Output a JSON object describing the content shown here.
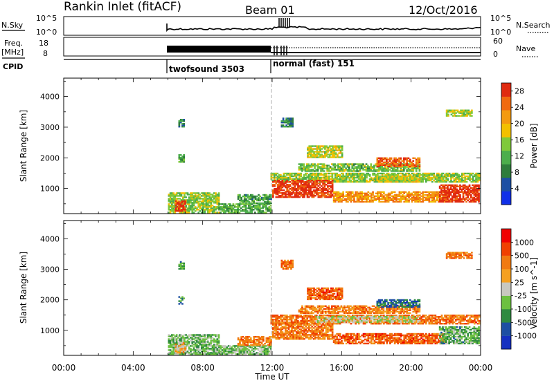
{
  "header": {
    "title": "Rankin Inlet (fitACF)",
    "beam": "Beam 01",
    "date": "12/Oct/2016"
  },
  "strip_labels": {
    "nsky": "N.Sky",
    "nsky_top_tick": "10^5",
    "nsky_bottom_tick": "10^0",
    "nsearch": "N.Search",
    "nsearch_top_tick": "10^5",
    "nsearch_bottom_tick": "10^0",
    "freq": "Freq.",
    "freq_unit": "[MHz]",
    "freq_top_tick": "18",
    "freq_bottom_tick": "8",
    "nave": "Nave",
    "nave_top_tick": "60",
    "nave_bottom_tick": "0",
    "cpid": "CPID",
    "cpid_mode_1": "twofsound 3503",
    "cpid_mode_2": "normal (fast) 151"
  },
  "colors": {
    "power": [
      "#1030e8",
      "#1d4fa3",
      "#2e7d3c",
      "#4cae4c",
      "#7fc93a",
      "#f2c000",
      "#f39a10",
      "#f06a10",
      "#e02a10"
    ],
    "velocity": [
      "#f00000",
      "#f04000",
      "#f07a10",
      "#f5a020",
      "#c8c8c0",
      "#6cc040",
      "#2e8a40",
      "#1d4fa3",
      "#1530c0"
    ]
  },
  "chart_data": [
    {
      "type": "heatmap",
      "name": "power",
      "ylabel": "Slant Range [km]",
      "x_range_hours": [
        0,
        24
      ],
      "ylim": [
        180,
        4600
      ],
      "yticks": [
        "1000",
        "2000",
        "3000",
        "4000"
      ],
      "colorbar": {
        "label": "Power [dB]",
        "ticks": [
          "4",
          "8",
          "12",
          "16",
          "20",
          "24",
          "28"
        ],
        "range": [
          0,
          30
        ]
      },
      "regions": [
        {
          "t0": 6.0,
          "t1": 8.9,
          "r0": 200,
          "r1": 850,
          "level": 0.5
        },
        {
          "t0": 6.4,
          "t1": 7.0,
          "r0": 250,
          "r1": 600,
          "level": 0.95
        },
        {
          "t0": 8.9,
          "t1": 11.9,
          "r0": 200,
          "r1": 500,
          "level": 0.4
        },
        {
          "t0": 10.0,
          "t1": 11.9,
          "r0": 500,
          "r1": 800,
          "level": 0.35
        },
        {
          "t0": 6.6,
          "t1": 6.9,
          "r0": 3000,
          "r1": 3250,
          "level": 0.3
        },
        {
          "t0": 6.6,
          "t1": 6.9,
          "r0": 1850,
          "r1": 2100,
          "level": 0.35
        },
        {
          "t0": 11.9,
          "t1": 23.9,
          "r0": 1200,
          "r1": 1500,
          "level": 0.5
        },
        {
          "t0": 12.0,
          "t1": 15.5,
          "r0": 700,
          "r1": 1250,
          "level": 0.95
        },
        {
          "t0": 15.5,
          "t1": 22.0,
          "r0": 550,
          "r1": 900,
          "level": 0.75
        },
        {
          "t0": 18.0,
          "t1": 20.5,
          "r0": 1200,
          "r1": 1400,
          "level": 0.55
        },
        {
          "t0": 21.6,
          "t1": 23.9,
          "r0": 550,
          "r1": 1100,
          "level": 0.95
        },
        {
          "t0": 13.5,
          "t1": 20.5,
          "r0": 1550,
          "r1": 1800,
          "level": 0.45
        },
        {
          "t0": 18.0,
          "t1": 20.5,
          "r0": 1700,
          "r1": 2000,
          "level": 0.85
        },
        {
          "t0": 14.0,
          "t1": 16.0,
          "r0": 2000,
          "r1": 2400,
          "level": 0.55
        },
        {
          "t0": 12.5,
          "t1": 13.2,
          "r0": 3000,
          "r1": 3300,
          "level": 0.3
        },
        {
          "t0": 22.0,
          "t1": 23.5,
          "r0": 3350,
          "r1": 3550,
          "level": 0.5
        }
      ]
    },
    {
      "type": "heatmap",
      "name": "velocity",
      "ylabel": "Slant Range [km]",
      "xlabel": "Time UT",
      "xticks": [
        "00:00",
        "04:00",
        "08:00",
        "12:00",
        "16:00",
        "20:00",
        "00:00"
      ],
      "x_range_hours": [
        0,
        24
      ],
      "ylim": [
        180,
        4600
      ],
      "yticks": [
        "1000",
        "2000",
        "3000",
        "4000"
      ],
      "colorbar": {
        "label": "Velocity [m s^-1]",
        "ticks": [
          "1000",
          "500",
          "100",
          "25",
          "-25",
          "-100",
          "-500",
          "-1000"
        ]
      },
      "regions": [
        {
          "t0": 6.0,
          "t1": 8.9,
          "r0": 200,
          "r1": 850,
          "level": 0.62
        },
        {
          "t0": 6.4,
          "t1": 7.0,
          "r0": 250,
          "r1": 600,
          "level": 0.4
        },
        {
          "t0": 8.9,
          "t1": 11.9,
          "r0": 200,
          "r1": 500,
          "level": 0.6
        },
        {
          "t0": 10.0,
          "t1": 11.9,
          "r0": 500,
          "r1": 800,
          "level": 0.3
        },
        {
          "t0": 6.6,
          "t1": 6.9,
          "r0": 3000,
          "r1": 3250,
          "level": 0.65
        },
        {
          "t0": 6.6,
          "t1": 6.9,
          "r0": 1850,
          "r1": 2100,
          "level": 0.7
        },
        {
          "t0": 11.9,
          "t1": 23.9,
          "r0": 1200,
          "r1": 1500,
          "level": 0.25
        },
        {
          "t0": 12.0,
          "t1": 15.5,
          "r0": 700,
          "r1": 1250,
          "level": 0.28
        },
        {
          "t0": 15.5,
          "t1": 22.0,
          "r0": 550,
          "r1": 900,
          "level": 0.22
        },
        {
          "t0": 14.5,
          "t1": 20.5,
          "r0": 1250,
          "r1": 1450,
          "level": 0.5
        },
        {
          "t0": 21.6,
          "t1": 23.9,
          "r0": 550,
          "r1": 1100,
          "level": 0.65
        },
        {
          "t0": 13.5,
          "t1": 20.5,
          "r0": 1550,
          "r1": 1800,
          "level": 0.3
        },
        {
          "t0": 18.0,
          "t1": 20.5,
          "r0": 1750,
          "r1": 2000,
          "level": 0.8
        },
        {
          "t0": 14.0,
          "t1": 16.0,
          "r0": 2000,
          "r1": 2400,
          "level": 0.22
        },
        {
          "t0": 12.5,
          "t1": 13.2,
          "r0": 3000,
          "r1": 3300,
          "level": 0.25
        },
        {
          "t0": 22.0,
          "t1": 23.5,
          "r0": 3350,
          "r1": 3550,
          "level": 0.25
        }
      ]
    }
  ]
}
